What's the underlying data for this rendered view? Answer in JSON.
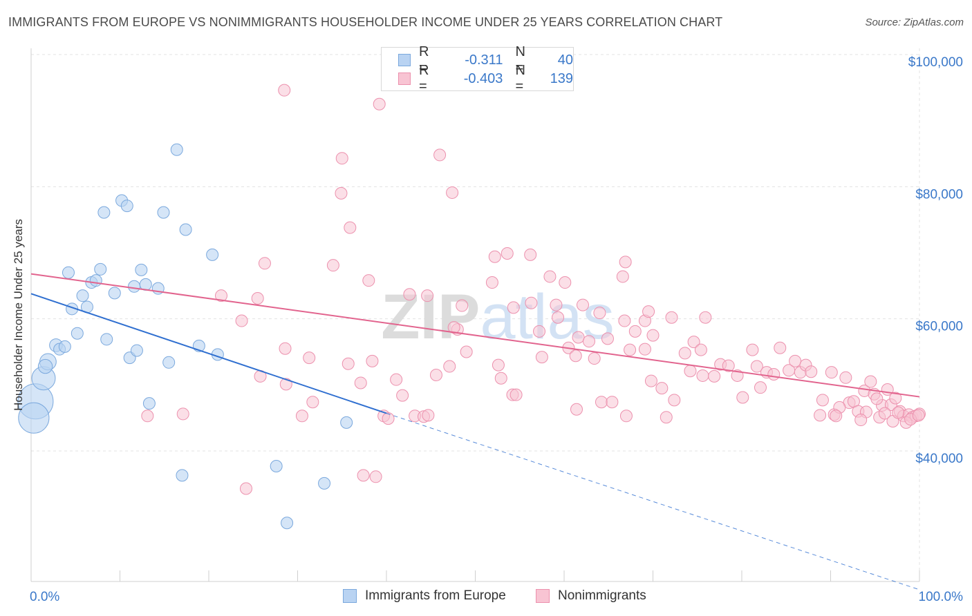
{
  "title": "IMMIGRANTS FROM EUROPE VS NONIMMIGRANTS HOUSEHOLDER INCOME UNDER 25 YEARS CORRELATION CHART",
  "source": "Source: ZipAtlas.com",
  "watermark": "ZIPatlas",
  "colors": {
    "blue_fill": "#b9d3f2",
    "blue_stroke": "#7aa8dd",
    "blue_line": "#2f6fd0",
    "pink_fill": "#f8c4d3",
    "pink_stroke": "#ec90ad",
    "pink_line": "#e2648e",
    "tick_label": "#3a78c9",
    "grid": "#e3e3e3"
  },
  "legend": {
    "row1": {
      "r_label": "R =",
      "r_value": "-0.311",
      "n_label": "N =",
      "n_value": "40"
    },
    "row2": {
      "r_label": "R =",
      "r_value": "-0.403",
      "n_label": "N =",
      "n_value": "139"
    }
  },
  "bottom_legend": {
    "blue": "Immigrants from Europe",
    "pink": "Nonimmigrants"
  },
  "chart_data": {
    "type": "scatter",
    "title": "IMMIGRANTS FROM EUROPE VS NONIMMIGRANTS HOUSEHOLDER INCOME UNDER 25 YEARS CORRELATION CHART",
    "xlabel": "",
    "ylabel": "Householder Income Under 25 years",
    "xlim": [
      0,
      100
    ],
    "ylim": [
      20000,
      102000
    ],
    "x_tick_labels": [
      "0.0%",
      "100.0%"
    ],
    "y_ticks": [
      40000,
      60000,
      80000,
      100000
    ],
    "y_tick_labels": [
      "$40,000",
      "$60,000",
      "$80,000",
      "$100,000"
    ],
    "grid": true,
    "legend_position": "top-center",
    "series": [
      {
        "name": "Immigrants from Europe",
        "r": -0.311,
        "n": 40,
        "trend": {
          "x0": 0,
          "y0": 63800,
          "x1": 40,
          "y1": 45700,
          "dashed_to_x": 100,
          "dashed_to_y": 19000
        },
        "points": [
          [
            0.5,
            47500,
            3
          ],
          [
            0.3,
            45000,
            2.6
          ],
          [
            1.4,
            51000,
            2
          ],
          [
            1.9,
            53500,
            1.4
          ],
          [
            1.6,
            52800,
            1.2
          ],
          [
            2.8,
            56000,
            1.1
          ],
          [
            3.2,
            55400,
            1
          ],
          [
            3.8,
            55800,
            1
          ],
          [
            4.2,
            67000,
            1
          ],
          [
            4.6,
            61500,
            1
          ],
          [
            5.2,
            57800,
            1
          ],
          [
            5.8,
            63500,
            1
          ],
          [
            6.3,
            61800,
            1
          ],
          [
            6.8,
            65500,
            1
          ],
          [
            7.3,
            65800,
            1
          ],
          [
            7.8,
            67500,
            1
          ],
          [
            8.5,
            56900,
            1
          ],
          [
            9.4,
            63900,
            1
          ],
          [
            10.2,
            77900,
            1
          ],
          [
            10.8,
            77100,
            1
          ],
          [
            8.2,
            76100,
            1
          ],
          [
            11.1,
            54100,
            1
          ],
          [
            11.6,
            64900,
            1
          ],
          [
            11.9,
            55200,
            1
          ],
          [
            12.4,
            67400,
            1
          ],
          [
            12.9,
            65200,
            1
          ],
          [
            13.3,
            47200,
            1
          ],
          [
            14.3,
            64600,
            1
          ],
          [
            14.9,
            76100,
            1
          ],
          [
            15.5,
            53400,
            1
          ],
          [
            16.4,
            85600,
            1
          ],
          [
            17.0,
            36300,
            1
          ],
          [
            17.4,
            73500,
            1
          ],
          [
            18.9,
            55900,
            1
          ],
          [
            20.4,
            69700,
            1
          ],
          [
            21.0,
            54600,
            1
          ],
          [
            27.6,
            37700,
            1
          ],
          [
            28.8,
            29100,
            1
          ],
          [
            33.0,
            35100,
            1
          ],
          [
            35.5,
            44300,
            1
          ]
        ]
      },
      {
        "name": "Nonimmigrants",
        "r": -0.403,
        "n": 139,
        "trend": {
          "x0": 0,
          "y0": 66800,
          "x1": 100,
          "y1": 48200
        },
        "points": [
          [
            28.5,
            94600
          ],
          [
            39.2,
            92500
          ],
          [
            35.0,
            84300
          ],
          [
            46.0,
            84800
          ],
          [
            34.9,
            79000
          ],
          [
            47.4,
            79100
          ],
          [
            35.9,
            73800
          ],
          [
            26.3,
            68400
          ],
          [
            34.0,
            68100
          ],
          [
            38.0,
            65800
          ],
          [
            52.2,
            69400
          ],
          [
            53.6,
            69900
          ],
          [
            56.2,
            69700
          ],
          [
            51.9,
            65500
          ],
          [
            58.4,
            66400
          ],
          [
            60.1,
            65500
          ],
          [
            66.6,
            66400
          ],
          [
            66.9,
            68600
          ],
          [
            21.4,
            63500
          ],
          [
            25.5,
            63100
          ],
          [
            23.7,
            59700
          ],
          [
            42.6,
            63700
          ],
          [
            44.6,
            63500
          ],
          [
            48.5,
            62000
          ],
          [
            54.3,
            61700
          ],
          [
            56.3,
            62400
          ],
          [
            57.2,
            58100
          ],
          [
            59.1,
            62100
          ],
          [
            59.3,
            60200
          ],
          [
            61.6,
            57200
          ],
          [
            62.1,
            62100
          ],
          [
            64.0,
            60900
          ],
          [
            62.8,
            56600
          ],
          [
            64.9,
            57000
          ],
          [
            66.8,
            59700
          ],
          [
            67.4,
            55300
          ],
          [
            68.0,
            58100
          ],
          [
            69.1,
            55400
          ],
          [
            69.1,
            59700
          ],
          [
            69.5,
            61100
          ],
          [
            70.0,
            57500
          ],
          [
            72.1,
            60200
          ],
          [
            75.9,
            60200
          ],
          [
            73.6,
            54800
          ],
          [
            74.6,
            56500
          ],
          [
            75.4,
            55300
          ],
          [
            28.6,
            55500
          ],
          [
            31.3,
            54100
          ],
          [
            35.7,
            53200
          ],
          [
            37.1,
            50300
          ],
          [
            38.4,
            53600
          ],
          [
            41.1,
            50800
          ],
          [
            41.8,
            48400
          ],
          [
            45.6,
            51500
          ],
          [
            47.1,
            52800
          ],
          [
            49.0,
            55000
          ],
          [
            48.0,
            58400
          ],
          [
            47.6,
            58700
          ],
          [
            52.6,
            53000
          ],
          [
            52.9,
            51000
          ],
          [
            54.2,
            48500
          ],
          [
            54.6,
            48500
          ],
          [
            57.5,
            54200
          ],
          [
            60.5,
            55600
          ],
          [
            61.3,
            54400
          ],
          [
            63.4,
            54000
          ],
          [
            64.2,
            47400
          ],
          [
            69.8,
            50600
          ],
          [
            71.0,
            49500
          ],
          [
            72.4,
            47700
          ],
          [
            71.5,
            45100
          ],
          [
            74.2,
            52100
          ],
          [
            75.6,
            51400
          ],
          [
            76.9,
            51300
          ],
          [
            77.6,
            53100
          ],
          [
            78.5,
            52900
          ],
          [
            79.5,
            51400
          ],
          [
            80.1,
            48100
          ],
          [
            81.2,
            55300
          ],
          [
            81.7,
            52800
          ],
          [
            82.1,
            49600
          ],
          [
            82.8,
            51900
          ],
          [
            83.6,
            51600
          ],
          [
            84.3,
            55600
          ],
          [
            85.3,
            52200
          ],
          [
            86.0,
            53600
          ],
          [
            86.6,
            51900
          ],
          [
            87.2,
            53000
          ],
          [
            87.8,
            52000
          ],
          [
            88.8,
            45400
          ],
          [
            89.1,
            47700
          ],
          [
            90.1,
            51900
          ],
          [
            90.4,
            45500
          ],
          [
            91.7,
            51100
          ],
          [
            92.1,
            47300
          ],
          [
            92.6,
            47500
          ],
          [
            93.1,
            46000
          ],
          [
            93.8,
            49100
          ],
          [
            94.5,
            50500
          ],
          [
            94.9,
            48600
          ],
          [
            95.5,
            45100
          ],
          [
            95.8,
            46900
          ],
          [
            96.4,
            49300
          ],
          [
            96.8,
            47000
          ],
          [
            97.3,
            48000
          ],
          [
            97.8,
            46000
          ],
          [
            98.2,
            45300
          ],
          [
            98.8,
            45500
          ],
          [
            99.2,
            45100
          ],
          [
            99.6,
            45300
          ],
          [
            100.0,
            45600
          ],
          [
            96.1,
            45700
          ],
          [
            97.0,
            44500
          ],
          [
            97.6,
            45800
          ],
          [
            98.5,
            44300
          ],
          [
            99.0,
            44800
          ],
          [
            99.9,
            45400
          ],
          [
            94.0,
            45900
          ],
          [
            93.4,
            44700
          ],
          [
            91.0,
            46600
          ],
          [
            90.6,
            45300
          ],
          [
            95.2,
            47900
          ],
          [
            13.1,
            45300
          ],
          [
            17.1,
            45600
          ],
          [
            24.2,
            34300
          ],
          [
            25.8,
            51300
          ],
          [
            28.7,
            50100
          ],
          [
            30.5,
            45300
          ],
          [
            31.7,
            47400
          ],
          [
            37.4,
            36300
          ],
          [
            38.8,
            36100
          ],
          [
            39.7,
            45300
          ],
          [
            40.2,
            44900
          ],
          [
            43.2,
            45300
          ],
          [
            44.2,
            45200
          ],
          [
            44.7,
            45400
          ],
          [
            61.4,
            46300
          ],
          [
            65.4,
            47400
          ],
          [
            67.0,
            45300
          ]
        ]
      }
    ]
  }
}
